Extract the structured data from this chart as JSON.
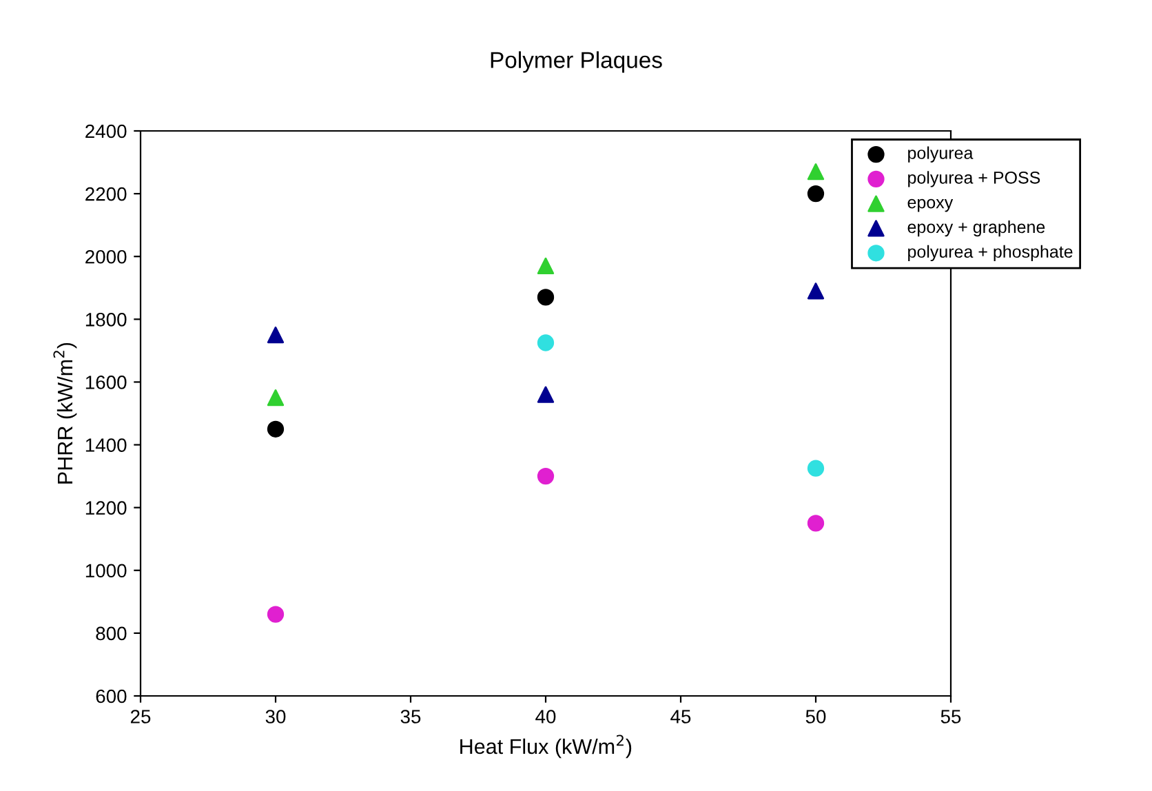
{
  "chart_data": {
    "type": "scatter",
    "title": "Polymer Plaques",
    "xlabel": "Heat Flux (kW/m$^{2}$)",
    "ylabel": "PHRR (kW/m$^{2}$)",
    "x": [
      30,
      40,
      50
    ],
    "series": [
      {
        "name": "polyurea",
        "color": "#000000",
        "marker": "circle",
        "values": [
          1450,
          1870,
          2200
        ]
      },
      {
        "name": "polyurea + POSS",
        "color": "#e020d0",
        "marker": "circle",
        "values": [
          860,
          1300,
          1150
        ]
      },
      {
        "name": "epoxy",
        "color": "#30d030",
        "marker": "triangle",
        "values": [
          1550,
          1970,
          2270
        ]
      },
      {
        "name": "epoxy + graphene",
        "color": "#000090",
        "marker": "triangle",
        "values": [
          1750,
          1560,
          1890
        ]
      },
      {
        "name": "polyurea + phosphate",
        "color": "#30e0e0",
        "marker": "circle",
        "values": [
          null,
          1725,
          1325
        ]
      }
    ],
    "xlim": [
      25,
      55
    ],
    "xticks": [
      25,
      30,
      35,
      40,
      45,
      50,
      55
    ],
    "ylim": [
      600,
      2400
    ],
    "yticks": [
      600,
      800,
      1000,
      1200,
      1400,
      1600,
      1800,
      2000,
      2200,
      2400
    ],
    "grid": false,
    "legend": "top right"
  }
}
